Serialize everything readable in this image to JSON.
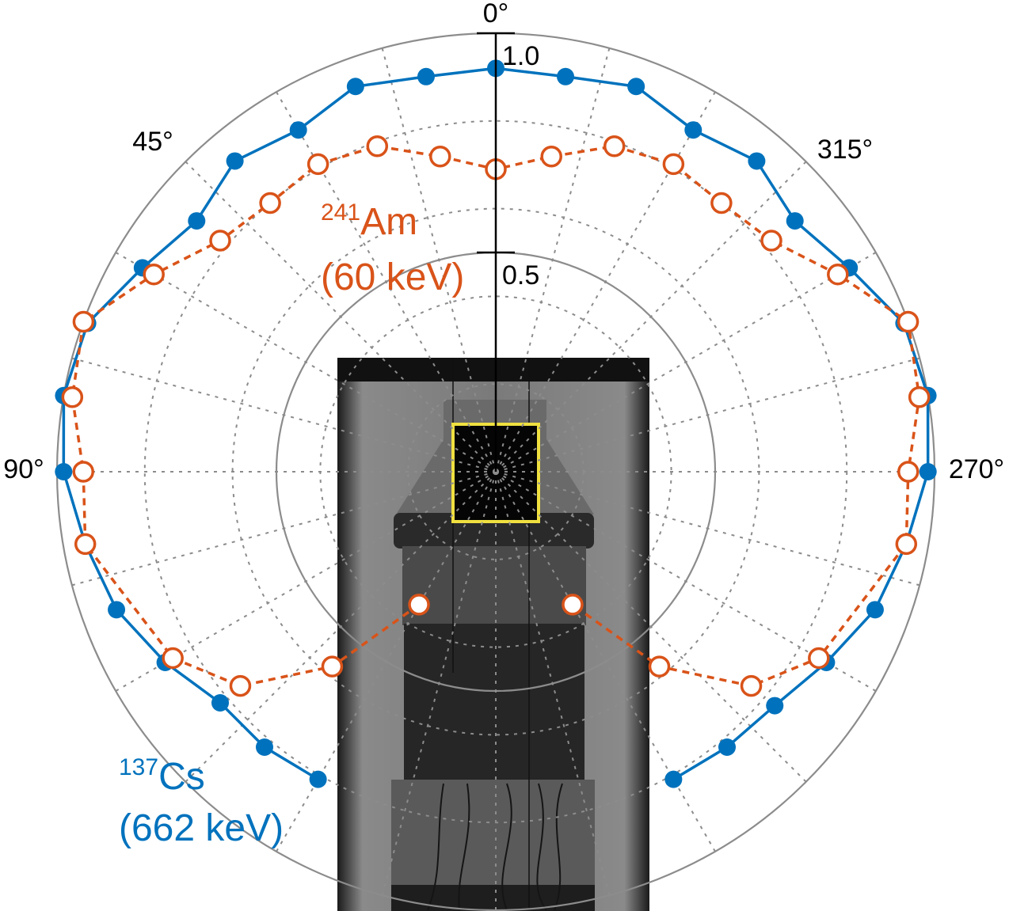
{
  "chart_data": {
    "type": "polar",
    "angle_direction": "counterclockwise",
    "zero_location": "top",
    "angle_unit": "degrees",
    "rlim": [
      0,
      1.0
    ],
    "r_tick_labels": [
      "1.0",
      "0.5"
    ],
    "r_ticks": [
      1.0,
      0.5
    ],
    "angle_tick_labels": [
      {
        "angle": 0,
        "label": "0°"
      },
      {
        "angle": 45,
        "label": "45°"
      },
      {
        "angle": 90,
        "label": "90°"
      },
      {
        "angle": 270,
        "label": "270°"
      },
      {
        "angle": 315,
        "label": "315°"
      }
    ],
    "grid": true,
    "series": [
      {
        "name_sup": "137",
        "name_main": "Cs",
        "energy": "(662 keV)",
        "color": "#0072bd",
        "marker": "filled-circle",
        "line": "solid",
        "theta": [
          150,
          140,
          130,
          120,
          110,
          100,
          90,
          80,
          70,
          60,
          50,
          40,
          30,
          20,
          10,
          0,
          350,
          340,
          330,
          320,
          310,
          300,
          290,
          280,
          270,
          260,
          250,
          240,
          230,
          220,
          210
        ],
        "r": [
          0.81,
          0.82,
          0.82,
          0.87,
          0.92,
          0.95,
          0.985,
          1.0,
          0.99,
          0.93,
          0.89,
          0.925,
          0.9,
          0.935,
          0.915,
          0.92,
          0.915,
          0.935,
          0.9,
          0.925,
          0.89,
          0.93,
          0.99,
          1.0,
          0.985,
          0.95,
          0.92,
          0.87,
          0.83,
          0.82,
          0.81
        ]
      },
      {
        "name_sup": "241",
        "name_main": "Am",
        "energy": "(60 keV)",
        "color": "#d95319",
        "marker": "open-circle",
        "line": "dashed",
        "theta": [
          150,
          140,
          130,
          120,
          100,
          90,
          80,
          70,
          60,
          50,
          40,
          30,
          20,
          10,
          0,
          350,
          340,
          330,
          320,
          310,
          300,
          290,
          280,
          270,
          260,
          240,
          230,
          220,
          210
        ],
        "r": [
          0.35,
          0.58,
          0.76,
          0.85,
          0.95,
          0.94,
          0.98,
          1.0,
          0.9,
          0.82,
          0.8,
          0.81,
          0.79,
          0.73,
          0.69,
          0.73,
          0.79,
          0.81,
          0.8,
          0.82,
          0.9,
          1.0,
          0.98,
          0.94,
          0.95,
          0.85,
          0.76,
          0.58,
          0.35
        ]
      }
    ]
  }
}
